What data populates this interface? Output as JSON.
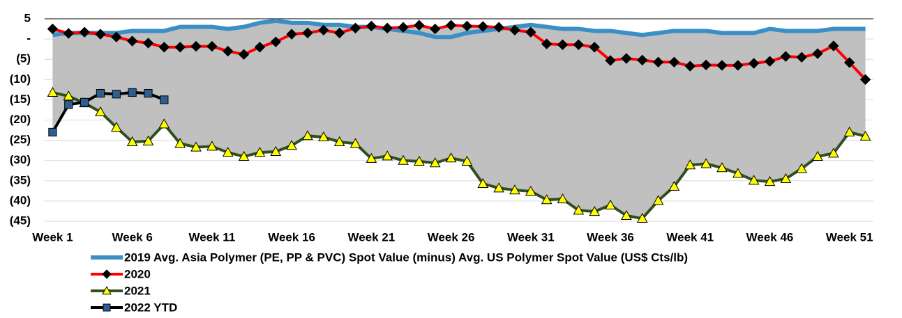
{
  "chart_data": {
    "type": "line",
    "categories": [
      "Week 1",
      null,
      null,
      null,
      null,
      "Week 6",
      null,
      null,
      null,
      null,
      "Week 11",
      null,
      null,
      null,
      null,
      "Week 16",
      null,
      null,
      null,
      null,
      "Week 21",
      null,
      null,
      null,
      null,
      "Week 26",
      null,
      null,
      null,
      null,
      "Week 31",
      null,
      null,
      null,
      null,
      "Week 36",
      null,
      null,
      null,
      null,
      "Week 41",
      null,
      null,
      null,
      null,
      "Week 46",
      null,
      null,
      null,
      null,
      "Week 51",
      null
    ],
    "ylim": [
      -45,
      5
    ],
    "yticks": [
      5,
      {
        "value": 0,
        "label": "-"
      },
      {
        "value": -5,
        "label": "(5)"
      },
      {
        "value": -10,
        "label": "(10)"
      },
      {
        "value": -15,
        "label": "(15)"
      },
      {
        "value": -20,
        "label": "(20)"
      },
      {
        "value": -25,
        "label": "(25)"
      },
      {
        "value": -30,
        "label": "(30)"
      },
      {
        "value": -35,
        "label": "(35)"
      },
      {
        "value": -40,
        "label": "(40)"
      },
      {
        "value": -45,
        "label": "(45)"
      }
    ],
    "grid": true,
    "range_fill": "#c0c0c0",
    "legend": "bottom",
    "series": [
      {
        "name": "2019 Avg. Asia Polymer (PE, PP & PVC) Spot Value (minus) Avg. US Polymer Spot Value (US$ Cts/lb)",
        "color": "#3a8fc6",
        "marker": "none",
        "marker_color": "#3a8fc6",
        "values": [
          1,
          1.5,
          1.5,
          1.5,
          1.5,
          2,
          2,
          2,
          3,
          3,
          3,
          2.5,
          3,
          4,
          4.5,
          4,
          4,
          3.5,
          3.5,
          3,
          3,
          2.5,
          2,
          1.5,
          0.5,
          0.5,
          1.5,
          2,
          2.5,
          3,
          3.5,
          3,
          2.5,
          2.5,
          2,
          2,
          1.5,
          1,
          1.5,
          2,
          2,
          2,
          1.5,
          1.5,
          1.5,
          2.5,
          2,
          2,
          2,
          2.5,
          2.5,
          2.5
        ]
      },
      {
        "name": "2020",
        "color": "#ff0000",
        "marker": "diamond",
        "marker_color": "#000000",
        "values": [
          2.5,
          1.4,
          1.7,
          1.2,
          0.5,
          -0.5,
          -1,
          -2,
          -2,
          -1.8,
          -1.8,
          -3,
          -3.8,
          -2,
          -0.7,
          1.2,
          1.5,
          2.2,
          1.5,
          2.7,
          3.2,
          2.7,
          2.9,
          3.4,
          2.5,
          3.4,
          3.2,
          3.1,
          2.9,
          2.2,
          1.7,
          -1.2,
          -1.4,
          -1.4,
          -2,
          -5.3,
          -4.8,
          -5.2,
          -5.7,
          -5.7,
          -6.7,
          -6.4,
          -6.5,
          -6.5,
          -6,
          -5.5,
          -4.3,
          -4.5,
          -3.6,
          -1.7,
          -5.8,
          -10
        ]
      },
      {
        "name": "2021",
        "color": "#2f4f1f",
        "marker": "triangle",
        "marker_color": "#ffff00",
        "values": [
          -13.2,
          -14.1,
          -15.8,
          -18,
          -21.8,
          -25.4,
          -25.2,
          -21,
          -25.8,
          -26.7,
          -26.5,
          -28,
          -29,
          -28,
          -27.8,
          -26.3,
          -23.9,
          -24.2,
          -25.4,
          -25.8,
          -29.5,
          -28.9,
          -30,
          -30.2,
          -30.6,
          -29.4,
          -30.2,
          -35.7,
          -36.8,
          -37.3,
          -37.6,
          -39.7,
          -39.5,
          -42.3,
          -42.6,
          -41,
          -43.6,
          -44.3,
          -39.9,
          -36.4,
          -31.1,
          -30.8,
          -31.8,
          -33.2,
          -34.9,
          -35.2,
          -34.5,
          -32,
          -29,
          -28.2,
          -23,
          -24
        ]
      },
      {
        "name": "2022 YTD",
        "color": "#000000",
        "marker": "square",
        "marker_color": "#2f5f8f",
        "values": [
          -23,
          -16.2,
          -15.6,
          -13.4,
          -13.6,
          -13.2,
          -13.4,
          -15,
          null,
          null,
          null,
          null,
          null,
          null,
          null,
          null,
          null,
          null,
          null,
          null,
          null,
          null,
          null,
          null,
          null,
          null,
          null,
          null,
          null,
          null,
          null,
          null,
          null,
          null,
          null,
          null,
          null,
          null,
          null,
          null,
          null,
          null,
          null,
          null,
          null,
          null,
          null,
          null,
          null,
          null,
          null,
          null
        ]
      }
    ]
  }
}
